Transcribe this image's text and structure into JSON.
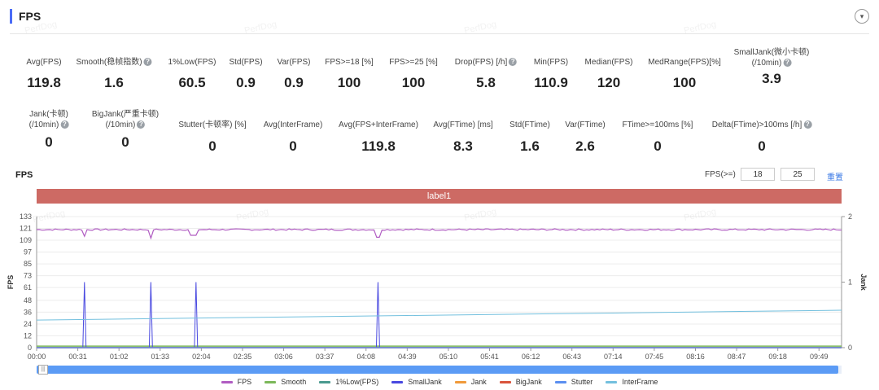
{
  "header": {
    "title": "FPS",
    "collapse_icon": "▾"
  },
  "watermark": "PerfDog",
  "metrics_row1": [
    {
      "label": "Avg(FPS)",
      "value": "119.8",
      "help": false
    },
    {
      "label": "Smooth(稳帧指数)",
      "value": "1.6",
      "help": true
    },
    {
      "label": "1%Low(FPS)",
      "value": "60.5",
      "help": false
    },
    {
      "label": "Std(FPS)",
      "value": "0.9",
      "help": false
    },
    {
      "label": "Var(FPS)",
      "value": "0.9",
      "help": false
    },
    {
      "label": "FPS>=18 [%]",
      "value": "100",
      "help": false
    },
    {
      "label": "FPS>=25 [%]",
      "value": "100",
      "help": false
    },
    {
      "label": "Drop(FPS) [/h]",
      "value": "5.8",
      "help": true
    },
    {
      "label": "Min(FPS)",
      "value": "110.9",
      "help": false
    },
    {
      "label": "Median(FPS)",
      "value": "120",
      "help": false
    },
    {
      "label": "MedRange(FPS)[%]",
      "value": "100",
      "help": false
    },
    {
      "label": "SmallJank(微小卡顿)",
      "label2": "(/10min)",
      "value": "3.9",
      "help": true
    }
  ],
  "metrics_row2": [
    {
      "label": "Jank(卡顿)",
      "label2": "(/10min)",
      "value": "0",
      "help": true
    },
    {
      "label": "BigJank(严重卡顿)",
      "label2": "(/10min)",
      "value": "0",
      "help": true
    },
    {
      "label": "Stutter(卡顿率) [%]",
      "value": "0",
      "help": false
    },
    {
      "label": "Avg(InterFrame)",
      "value": "0",
      "help": false
    },
    {
      "label": "Avg(FPS+InterFrame)",
      "value": "119.8",
      "help": false
    },
    {
      "label": "Avg(FTime) [ms]",
      "value": "8.3",
      "help": false
    },
    {
      "label": "Std(FTime)",
      "value": "1.6",
      "help": false
    },
    {
      "label": "Var(FTime)",
      "value": "2.6",
      "help": false
    },
    {
      "label": "FTime>=100ms [%]",
      "value": "0",
      "help": false
    },
    {
      "label": "Delta(FTime)>100ms [/h]",
      "value": "0",
      "help": true
    }
  ],
  "help_icon": "?",
  "chart_controls": {
    "title": "FPS",
    "fps_ge_label": "FPS(>=)",
    "threshold1": "18",
    "threshold2": "25",
    "reset_label": "重置"
  },
  "band_label": "label1",
  "slider": {
    "handle_icon": "|||",
    "range": [
      0,
      1
    ]
  },
  "chart_data": {
    "type": "line",
    "ylabel": "FPS",
    "y2label": "Jank",
    "yticks": [
      0,
      12,
      24,
      36,
      48,
      61,
      73,
      85,
      97,
      109,
      121,
      133
    ],
    "ylim": [
      0,
      133
    ],
    "y2ticks": [
      0,
      1,
      2
    ],
    "y2lim": [
      0,
      2
    ],
    "xticks": [
      "00:00",
      "00:31",
      "01:02",
      "01:33",
      "02:04",
      "02:35",
      "03:06",
      "03:37",
      "04:08",
      "04:39",
      "05:10",
      "05:41",
      "06:12",
      "06:43",
      "07:14",
      "07:45",
      "08:16",
      "08:47",
      "09:18",
      "09:49"
    ],
    "x_range_seconds": [
      0,
      606
    ],
    "grid": true,
    "series": [
      {
        "name": "FPS",
        "color": "#b05cc2",
        "axis": "left",
        "base": 119.8,
        "dips": [
          [
            36,
            113
          ],
          [
            86,
            111
          ],
          [
            117,
            114
          ],
          [
            120,
            114
          ],
          [
            257,
            112
          ]
        ]
      },
      {
        "name": "Smooth",
        "color": "#7cb85a",
        "axis": "left",
        "base": 1.6
      },
      {
        "name": "1%Low(FPS)",
        "color": "#4a9a8f",
        "axis": "left",
        "base": 0
      },
      {
        "name": "SmallJank",
        "color": "#4848e0",
        "axis": "right",
        "spikes_x": [
          36,
          86,
          120,
          257
        ],
        "spike_value": 1
      },
      {
        "name": "Jank",
        "color": "#f09a3a",
        "axis": "right",
        "base": 0
      },
      {
        "name": "BigJank",
        "color": "#d9543c",
        "axis": "right",
        "base": 0
      },
      {
        "name": "Stutter",
        "color": "#5b8ff0",
        "axis": "left",
        "base": 0
      },
      {
        "name": "InterFrame",
        "color": "#73c0de",
        "axis": "left",
        "start": 28,
        "end": 38
      }
    ]
  }
}
